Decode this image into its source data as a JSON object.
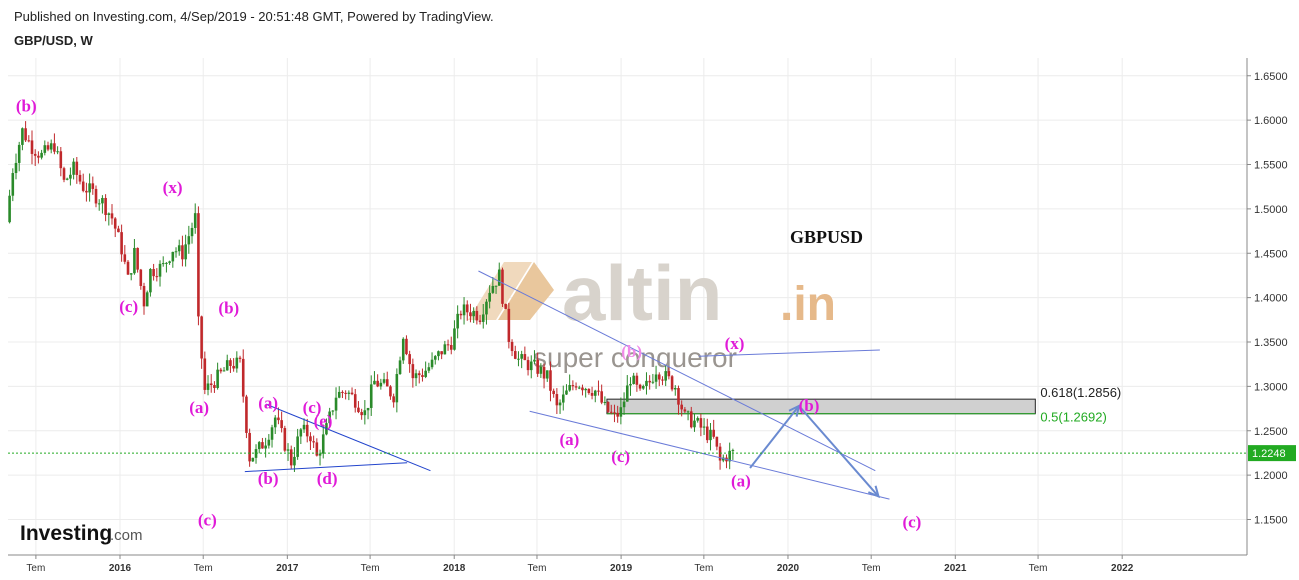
{
  "header": {
    "published": "Published on Investing.com, 4/Sep/2019 - 20:51:48 GMT, Powered by TradingView.",
    "symbol": "GBP/USD, W"
  },
  "colors": {
    "up_candle": "#2a8a2a",
    "down_candle": "#c0282b",
    "wave_label": "#e01ad8",
    "trendline": "#6a7bd8",
    "current_price_line": "#22aa22",
    "fib_zone": "#d0d0d0"
  },
  "chart_data": {
    "type": "candlestick",
    "title": "GBPUSD",
    "symbol": "GBP/USD",
    "interval": "W",
    "current_price": "1.2248",
    "y_axis": {
      "range": [
        1.11,
        1.67
      ],
      "ticks": [
        "1.6500",
        "1.6000",
        "1.5500",
        "1.5000",
        "1.4500",
        "1.4000",
        "1.3500",
        "1.3000",
        "1.2500",
        "1.2000",
        "1.1500"
      ]
    },
    "x_axis": {
      "range": [
        "2015-05-01",
        "2022-10-01"
      ],
      "ticks": [
        {
          "date": "2015-07-01",
          "label": "Tem",
          "year": false
        },
        {
          "date": "2016-01-01",
          "label": "2016",
          "year": true
        },
        {
          "date": "2016-07-01",
          "label": "Tem",
          "year": false
        },
        {
          "date": "2017-01-01",
          "label": "2017",
          "year": true
        },
        {
          "date": "2017-07-01",
          "label": "Tem",
          "year": false
        },
        {
          "date": "2018-01-01",
          "label": "2018",
          "year": true
        },
        {
          "date": "2018-07-01",
          "label": "Tem",
          "year": false
        },
        {
          "date": "2019-01-01",
          "label": "2019",
          "year": true
        },
        {
          "date": "2019-07-01",
          "label": "Tem",
          "year": false
        },
        {
          "date": "2020-01-01",
          "label": "2020",
          "year": true
        },
        {
          "date": "2020-07-01",
          "label": "Tem",
          "year": false
        },
        {
          "date": "2021-01-01",
          "label": "2021",
          "year": true
        },
        {
          "date": "2021-07-01",
          "label": "Tem",
          "year": false
        },
        {
          "date": "2022-01-01",
          "label": "2022",
          "year": true
        }
      ]
    },
    "price_path": [
      [
        "2015-05-01",
        1.485
      ],
      [
        "2015-05-15",
        1.545
      ],
      [
        "2015-06-05",
        1.588
      ],
      [
        "2015-06-26",
        1.57
      ],
      [
        "2015-07-17",
        1.56
      ],
      [
        "2015-08-14",
        1.572
      ],
      [
        "2015-09-04",
        1.53
      ],
      [
        "2015-09-25",
        1.545
      ],
      [
        "2015-10-16",
        1.525
      ],
      [
        "2015-11-06",
        1.518
      ],
      [
        "2015-11-27",
        1.508
      ],
      [
        "2015-12-18",
        1.49
      ],
      [
        "2016-01-08",
        1.455
      ],
      [
        "2016-01-22",
        1.42
      ],
      [
        "2016-02-05",
        1.45
      ],
      [
        "2016-02-26",
        1.395
      ],
      [
        "2016-03-11",
        1.43
      ],
      [
        "2016-04-08",
        1.435
      ],
      [
        "2016-04-29",
        1.455
      ],
      [
        "2016-05-20",
        1.45
      ],
      [
        "2016-06-17",
        1.49
      ],
      [
        "2016-06-24",
        1.37
      ],
      [
        "2016-07-08",
        1.295
      ],
      [
        "2016-08-05",
        1.31
      ],
      [
        "2016-09-02",
        1.325
      ],
      [
        "2016-09-23",
        1.325
      ],
      [
        "2016-10-07",
        1.255
      ],
      [
        "2016-10-14",
        1.22
      ],
      [
        "2016-10-28",
        1.225
      ],
      [
        "2016-11-18",
        1.24
      ],
      [
        "2016-12-09",
        1.265
      ],
      [
        "2016-12-30",
        1.235
      ],
      [
        "2017-01-13",
        1.215
      ],
      [
        "2017-02-03",
        1.25
      ],
      [
        "2017-02-24",
        1.245
      ],
      [
        "2017-03-10",
        1.22
      ],
      [
        "2017-03-31",
        1.252
      ],
      [
        "2017-04-21",
        1.29
      ],
      [
        "2017-05-12",
        1.295
      ],
      [
        "2017-06-02",
        1.285
      ],
      [
        "2017-06-23",
        1.27
      ],
      [
        "2017-07-14",
        1.305
      ],
      [
        "2017-08-04",
        1.3
      ],
      [
        "2017-08-25",
        1.29
      ],
      [
        "2017-09-15",
        1.36
      ],
      [
        "2017-10-06",
        1.31
      ],
      [
        "2017-10-27",
        1.315
      ],
      [
        "2017-11-17",
        1.325
      ],
      [
        "2017-12-08",
        1.34
      ],
      [
        "2017-12-29",
        1.35
      ],
      [
        "2018-01-19",
        1.385
      ],
      [
        "2018-02-09",
        1.385
      ],
      [
        "2018-03-02",
        1.38
      ],
      [
        "2018-03-23",
        1.41
      ],
      [
        "2018-04-13",
        1.425
      ],
      [
        "2018-05-04",
        1.355
      ],
      [
        "2018-05-25",
        1.33
      ],
      [
        "2018-06-15",
        1.325
      ],
      [
        "2018-07-06",
        1.32
      ],
      [
        "2018-07-27",
        1.31
      ],
      [
        "2018-08-17",
        1.275
      ],
      [
        "2018-09-07",
        1.292
      ],
      [
        "2018-09-28",
        1.305
      ],
      [
        "2018-10-19",
        1.3
      ],
      [
        "2018-11-09",
        1.295
      ],
      [
        "2018-11-30",
        1.275
      ],
      [
        "2018-12-21",
        1.265
      ],
      [
        "2019-01-04",
        1.272
      ],
      [
        "2019-01-25",
        1.31
      ],
      [
        "2019-02-15",
        1.29
      ],
      [
        "2019-03-08",
        1.305
      ],
      [
        "2019-03-22",
        1.32
      ],
      [
        "2019-04-12",
        1.31
      ],
      [
        "2019-05-03",
        1.3
      ],
      [
        "2019-05-24",
        1.265
      ],
      [
        "2019-06-14",
        1.26
      ],
      [
        "2019-07-05",
        1.25
      ],
      [
        "2019-07-26",
        1.24
      ],
      [
        "2019-08-09",
        1.215
      ],
      [
        "2019-08-23",
        1.222
      ],
      [
        "2019-09-04",
        1.2248
      ]
    ],
    "fib_levels": [
      {
        "label": "0.618(1.2856)",
        "value": 1.2856,
        "color": "#222222"
      },
      {
        "label": "0.5(1.2692)",
        "value": 1.2692,
        "color": "#22aa22"
      }
    ],
    "wave_labels": [
      {
        "text": "(b)",
        "date": "2015-06-10",
        "price": 1.61,
        "faded": false
      },
      {
        "text": "(x)",
        "date": "2016-04-25",
        "price": 1.518,
        "faded": false
      },
      {
        "text": "(c)",
        "date": "2016-01-20",
        "price": 1.384,
        "faded": false
      },
      {
        "text": "(b)",
        "date": "2016-08-26",
        "price": 1.382,
        "faded": false
      },
      {
        "text": "(a)",
        "date": "2016-06-22",
        "price": 1.27,
        "faded": false
      },
      {
        "text": "(c)",
        "date": "2016-07-10",
        "price": 1.143,
        "faded": false
      },
      {
        "text": "(a)",
        "date": "2016-11-20",
        "price": 1.275,
        "faded": false
      },
      {
        "text": "(b)",
        "date": "2016-11-20",
        "price": 1.19,
        "faded": false
      },
      {
        "text": "(c)",
        "date": "2017-02-24",
        "price": 1.27,
        "faded": false
      },
      {
        "text": "(e)",
        "date": "2017-03-20",
        "price": 1.255,
        "faded": false
      },
      {
        "text": "(d)",
        "date": "2017-03-29",
        "price": 1.19,
        "faded": false
      },
      {
        "text": "(b)",
        "date": "2019-01-24",
        "price": 1.333,
        "faded": true
      },
      {
        "text": "(x)",
        "date": "2019-09-06",
        "price": 1.342,
        "faded": false
      },
      {
        "text": "(a)",
        "date": "2018-09-10",
        "price": 1.234,
        "faded": false
      },
      {
        "text": "(c)",
        "date": "2018-12-31",
        "price": 1.215,
        "faded": false
      },
      {
        "text": "(b)",
        "date": "2020-02-16",
        "price": 1.272,
        "faded": false
      },
      {
        "text": "(a)",
        "date": "2019-09-20",
        "price": 1.187,
        "faded": false
      },
      {
        "text": "(c)",
        "date": "2020-09-28",
        "price": 1.141,
        "faded": false
      }
    ],
    "trend_lines": [
      [
        "2016-09-30",
        1.204,
        "2017-09-20",
        1.214,
        "#2244cc"
      ],
      [
        "2016-11-15",
        1.28,
        "2017-11-10",
        1.205,
        "#2244cc"
      ],
      [
        "2018-02-23",
        1.43,
        "2020-07-10",
        1.205,
        "#6a7bd8"
      ],
      [
        "2018-06-15",
        1.272,
        "2020-08-10",
        1.173,
        "#6a7bd8"
      ],
      [
        "2019-06-20",
        1.334,
        "2020-07-20",
        1.341,
        "#6a7bd8"
      ]
    ],
    "projection": [
      [
        "2019-10-10",
        1.208
      ],
      [
        "2020-01-25",
        1.278
      ],
      [
        "2020-07-17",
        1.176
      ]
    ]
  },
  "watermark": {
    "main": "altin",
    "suffix": ".in",
    "sub": "super conqueror"
  },
  "logo": {
    "main": "Investing",
    "suffix": ".com"
  }
}
